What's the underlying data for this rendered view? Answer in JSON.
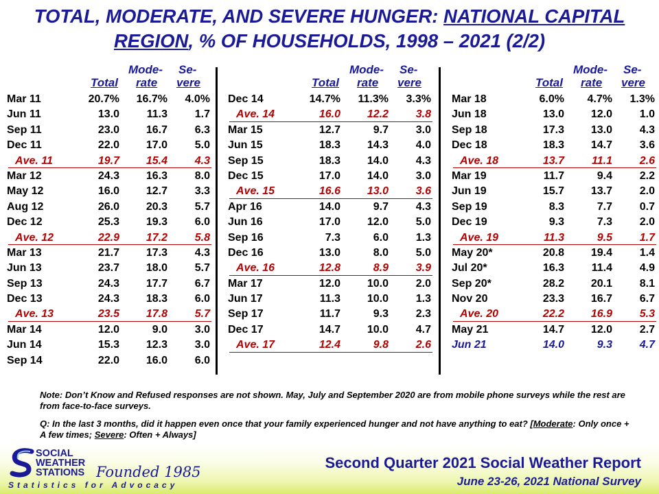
{
  "title": {
    "line1_prefix": "TOTAL, MODERATE, AND SEVERE HUNGER: ",
    "line1_underlined": "NATIONAL CAPITAL",
    "line2_underlined": "REGION",
    "line2_rest": ", % OF HOUSEHOLDS, 1998 – 2021 (2/2)"
  },
  "headers": {
    "total": "Total",
    "moderate_top": "Mode-",
    "moderate_bottom": "rate",
    "severe_top": "Se-",
    "severe_bottom": "vere"
  },
  "columns": [
    [
      {
        "label": "Mar  11",
        "total": "20.7%",
        "moderate": "16.7%",
        "severe": "4.0%",
        "type": "normal"
      },
      {
        "label": "Jun  11",
        "total": "13.0",
        "moderate": "11.3",
        "severe": "1.7",
        "type": "normal"
      },
      {
        "label": "Sep  11",
        "total": "23.0",
        "moderate": "16.7",
        "severe": "6.3",
        "type": "normal"
      },
      {
        "label": "Dec  11",
        "total": "22.0",
        "moderate": "17.0",
        "severe": "5.0",
        "type": "normal"
      },
      {
        "label": "Ave. 11",
        "total": "19.7",
        "moderate": "15.4",
        "severe": "4.3",
        "type": "ave"
      },
      {
        "label": "Mar  12",
        "total": "24.3",
        "moderate": "16.3",
        "severe": "8.0",
        "type": "normal"
      },
      {
        "label": "May  12",
        "total": "16.0",
        "moderate": "12.7",
        "severe": "3.3",
        "type": "normal"
      },
      {
        "label": "Aug  12",
        "total": "26.0",
        "moderate": "20.3",
        "severe": "5.7",
        "type": "normal"
      },
      {
        "label": "Dec  12",
        "total": "25.3",
        "moderate": "19.3",
        "severe": "6.0",
        "type": "normal"
      },
      {
        "label": "Ave. 12",
        "total": "22.9",
        "moderate": "17.2",
        "severe": "5.8",
        "type": "ave"
      },
      {
        "label": "Mar  13",
        "total": "21.7",
        "moderate": "17.3",
        "severe": "4.3",
        "type": "normal"
      },
      {
        "label": "Jun  13",
        "total": "23.7",
        "moderate": "18.0",
        "severe": "5.7",
        "type": "normal"
      },
      {
        "label": "Sep  13",
        "total": "24.3",
        "moderate": "17.7",
        "severe": "6.7",
        "type": "normal"
      },
      {
        "label": "Dec  13",
        "total": "24.3",
        "moderate": "18.3",
        "severe": "6.0",
        "type": "normal"
      },
      {
        "label": "Ave. 13",
        "total": "23.5",
        "moderate": "17.8",
        "severe": "5.7",
        "type": "ave"
      },
      {
        "label": "Mar  14",
        "total": "12.0",
        "moderate": "9.0",
        "severe": "3.0",
        "type": "normal"
      },
      {
        "label": "Jun  14",
        "total": "15.3",
        "moderate": "12.3",
        "severe": "3.0",
        "type": "normal"
      },
      {
        "label": "Sep  14",
        "total": "22.0",
        "moderate": "16.0",
        "severe": "6.0",
        "type": "normal"
      }
    ],
    [
      {
        "label": "Dec  14",
        "total": "14.7%",
        "moderate": "11.3%",
        "severe": "3.3%",
        "type": "normal"
      },
      {
        "label": "Ave. 14",
        "total": "16.0",
        "moderate": "12.2",
        "severe": "3.8",
        "type": "ave"
      },
      {
        "label": "Mar  15",
        "total": "12.7",
        "moderate": "9.7",
        "severe": "3.0",
        "type": "normal"
      },
      {
        "label": "Jun  15",
        "total": "18.3",
        "moderate": "14.3",
        "severe": "4.0",
        "type": "normal"
      },
      {
        "label": "Sep  15",
        "total": "18.3",
        "moderate": "14.0",
        "severe": "4.3",
        "type": "normal"
      },
      {
        "label": "Dec  15",
        "total": "17.0",
        "moderate": "14.0",
        "severe": "3.0",
        "type": "normal"
      },
      {
        "label": "Ave. 15",
        "total": "16.6",
        "moderate": "13.0",
        "severe": "3.6",
        "type": "ave"
      },
      {
        "label": "Apr  16",
        "total": "14.0",
        "moderate": "9.7",
        "severe": "4.3",
        "type": "normal"
      },
      {
        "label": "Jun  16",
        "total": "17.0",
        "moderate": "12.0",
        "severe": "5.0",
        "type": "normal"
      },
      {
        "label": "Sep  16",
        "total": "7.3",
        "moderate": "6.0",
        "severe": "1.3",
        "type": "normal"
      },
      {
        "label": "Dec  16",
        "total": "13.0",
        "moderate": "8.0",
        "severe": "5.0",
        "type": "normal"
      },
      {
        "label": "Ave. 16",
        "total": "12.8",
        "moderate": "8.9",
        "severe": "3.9",
        "type": "ave"
      },
      {
        "label": "Mar  17",
        "total": "12.0",
        "moderate": "10.0",
        "severe": "2.0",
        "type": "normal"
      },
      {
        "label": "Jun  17",
        "total": "11.3",
        "moderate": "10.0",
        "severe": "1.3",
        "type": "normal"
      },
      {
        "label": "Sep  17",
        "total": "11.7",
        "moderate": "9.3",
        "severe": "2.3",
        "type": "normal"
      },
      {
        "label": "Dec  17",
        "total": "14.7",
        "moderate": "10.0",
        "severe": "4.7",
        "type": "normal"
      },
      {
        "label": "Ave. 17",
        "total": "12.4",
        "moderate": "9.8",
        "severe": "2.6",
        "type": "ave"
      }
    ],
    [
      {
        "label": "Mar  18",
        "total": "6.0%",
        "moderate": "4.7%",
        "severe": "1.3%",
        "type": "normal"
      },
      {
        "label": "Jun  18",
        "total": "13.0",
        "moderate": "12.0",
        "severe": "1.0",
        "type": "normal"
      },
      {
        "label": "Sep  18",
        "total": "17.3",
        "moderate": "13.0",
        "severe": "4.3",
        "type": "normal"
      },
      {
        "label": "Dec  18",
        "total": "18.3",
        "moderate": "14.7",
        "severe": "3.6",
        "type": "normal"
      },
      {
        "label": "Ave. 18",
        "total": "13.7",
        "moderate": "11.1",
        "severe": "2.6",
        "type": "ave"
      },
      {
        "label": "Mar  19",
        "total": "11.7",
        "moderate": "9.4",
        "severe": "2.2",
        "type": "normal"
      },
      {
        "label": "Jun  19",
        "total": "15.7",
        "moderate": "13.7",
        "severe": "2.0",
        "type": "normal"
      },
      {
        "label": "Sep  19",
        "total": "8.3",
        "moderate": "7.7",
        "severe": "0.7",
        "type": "normal"
      },
      {
        "label": "Dec  19",
        "total": "9.3",
        "moderate": "7.3",
        "severe": "2.0",
        "type": "normal"
      },
      {
        "label": "Ave. 19",
        "total": "11.3",
        "moderate": "9.5",
        "severe": "1.7",
        "type": "ave"
      },
      {
        "label": "May  20*",
        "total": "20.8",
        "moderate": "19.4",
        "severe": "1.4",
        "type": "normal"
      },
      {
        "label": "Jul  20*",
        "total": "16.3",
        "moderate": "11.4",
        "severe": "4.9",
        "type": "normal"
      },
      {
        "label": "Sep  20*",
        "total": "28.2",
        "moderate": "20.1",
        "severe": "8.1",
        "type": "normal"
      },
      {
        "label": "Nov  20",
        "total": "23.3",
        "moderate": "16.7",
        "severe": "6.7",
        "type": "normal"
      },
      {
        "label": "Ave. 20",
        "total": "22.2",
        "moderate": "16.9",
        "severe": "5.3",
        "type": "ave"
      },
      {
        "label": "May  21",
        "total": "14.7",
        "moderate": "12.0",
        "severe": "2.7",
        "type": "normal"
      },
      {
        "label": "Jun  21",
        "total": "14.0",
        "moderate": "9.3",
        "severe": "4.7",
        "type": "blue"
      }
    ]
  ],
  "note": "Note: Don’t Know and Refused responses are not shown. May, July and September 2020 are from mobile phone surveys while the rest are from face-to-face surveys.",
  "question": {
    "prefix": "Q: In the last 3 months, did it happen even once that your family experienced hunger and not have anything to eat? [",
    "moderate_label": "Moderate",
    "moderate_text": ": Only once + A few times; ",
    "severe_label": "Severe",
    "severe_text": ": Often + Always]"
  },
  "footer": {
    "logo_line1": "SOCIAL",
    "logo_line2": "WEATHER",
    "logo_line3": "STATIONS",
    "founded": "Founded 1985",
    "tagline": "Statistics for Advocacy",
    "report_title": "Second Quarter 2021 Social Weather Report",
    "survey_dates": "June 23-26, 2021 National Survey"
  },
  "colors": {
    "title_blue": "#1a1a96",
    "average_red": "#b40000",
    "footer_green": "#d9ec6c"
  }
}
